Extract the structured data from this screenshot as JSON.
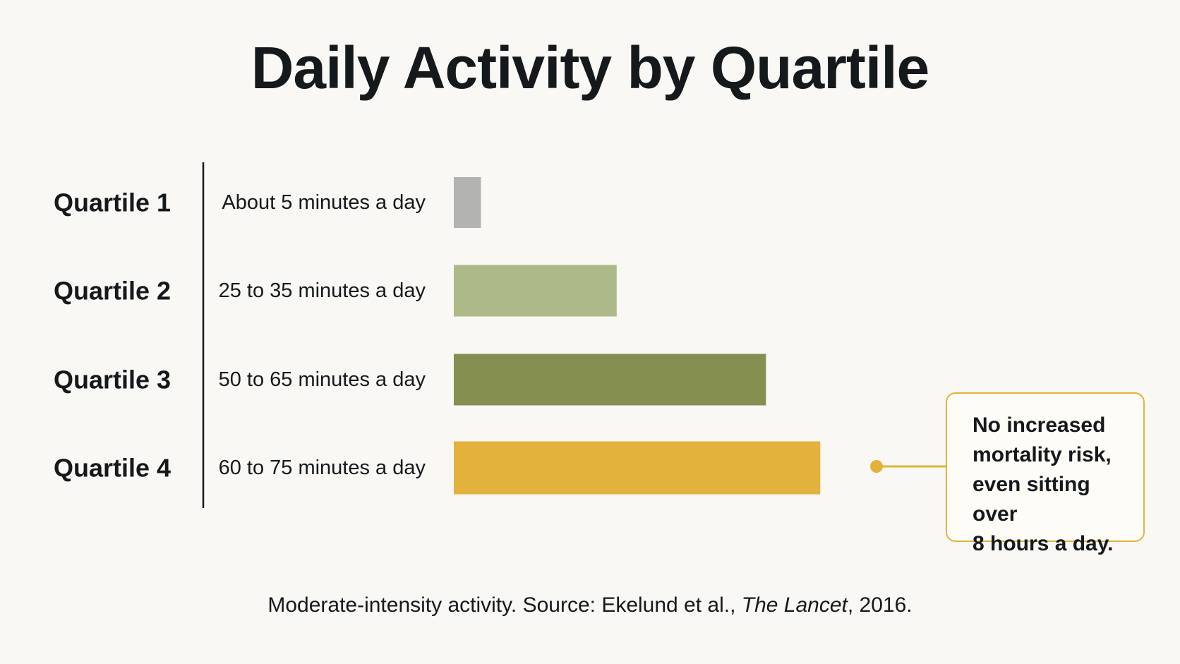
{
  "title": "Daily Activity by Quartile",
  "chart_data": {
    "type": "bar",
    "orientation": "horizontal",
    "title": "Daily Activity by Quartile",
    "xlabel": "",
    "ylabel": "",
    "grid": false,
    "categories": [
      "Quartile 1",
      "Quartile 2",
      "Quartile 3",
      "Quartile 4"
    ],
    "descriptions": [
      "About 5 minutes a day",
      "25 to 35 minutes a day",
      "50 to 65 minutes a day",
      "60 to 75 minutes a day"
    ],
    "values": [
      5,
      30,
      57.5,
      67.5
    ],
    "xlim": [
      0,
      75
    ],
    "colors": [
      "#b3b3b1",
      "#adb988",
      "#858f50",
      "#e3b23c"
    ],
    "annotation": {
      "target_category": "Quartile 4",
      "text_lines": [
        "No increased",
        "mortality risk,",
        "even sitting over",
        "8 hours a day."
      ],
      "color": "#e3b23c"
    }
  },
  "footer": {
    "prefix": "Moderate-intensity activity. Source: Ekelund et al., ",
    "journal": "The Lancet",
    "suffix": ", 2016."
  }
}
